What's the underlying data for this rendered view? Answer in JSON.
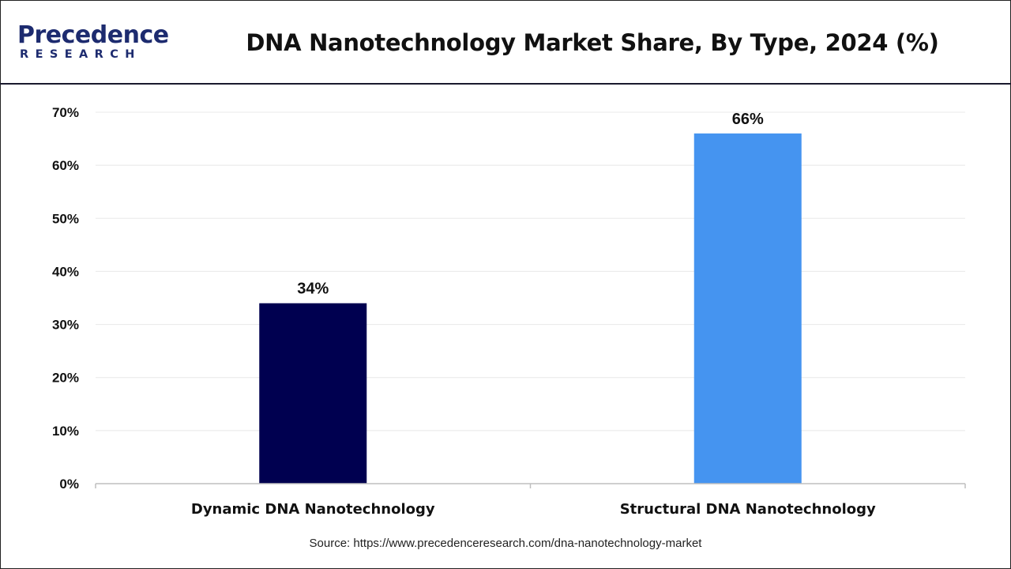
{
  "header": {
    "logo_line1": "Precedence",
    "logo_line2": "RESEARCH",
    "title": "DNA Nanotechnology Market Share, By Type, 2024 (%)"
  },
  "colors": {
    "brand": "#1d2b6f",
    "series": [
      "#000050",
      "#4594f0"
    ],
    "grid": "#e8e8e8",
    "axis": "#bfbfbf"
  },
  "chart_data": {
    "type": "bar",
    "title": "DNA Nanotechnology Market Share, By Type, 2024 (%)",
    "categories": [
      "Dynamic DNA Nanotechnology",
      "Structural DNA Nanotechnology"
    ],
    "values": [
      34,
      66
    ],
    "value_labels": [
      "34%",
      "66%"
    ],
    "ylim": [
      0,
      70
    ],
    "yticks": [
      0,
      10,
      20,
      30,
      40,
      50,
      60,
      70
    ],
    "ytick_labels": [
      "0%",
      "10%",
      "20%",
      "30%",
      "40%",
      "50%",
      "60%",
      "70%"
    ],
    "xlabel": "",
    "ylabel": "",
    "grid": true
  },
  "footer": {
    "source": "Source: https://www.precedenceresearch.com/dna-nanotechnology-market"
  }
}
